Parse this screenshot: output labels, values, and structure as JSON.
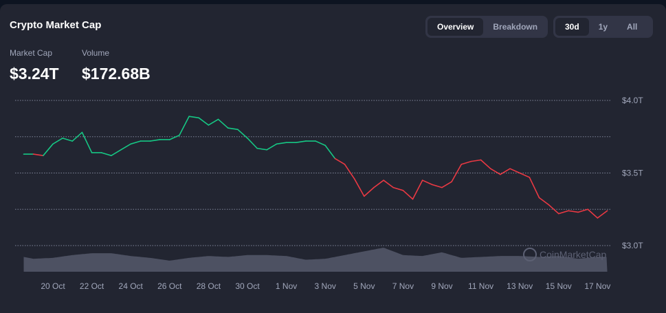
{
  "header": {
    "title": "Crypto Market Cap"
  },
  "view_tabs": [
    {
      "label": "Overview",
      "active": true
    },
    {
      "label": "Breakdown",
      "active": false
    }
  ],
  "range_tabs": [
    {
      "label": "30d",
      "active": true
    },
    {
      "label": "1y",
      "active": false
    },
    {
      "label": "All",
      "active": false
    }
  ],
  "stats": {
    "market_cap_label": "Market Cap",
    "market_cap_value": "$3.24T",
    "volume_label": "Volume",
    "volume_value": "$172.68B"
  },
  "watermark": "CoinMarketCap",
  "colors": {
    "up": "#16c784",
    "down": "#ea3943",
    "background": "#222531",
    "volume": "#5c6073"
  },
  "chart_data": {
    "type": "line",
    "ylim": [
      3.0,
      4.0
    ],
    "y_ticks": [
      {
        "value": 4.0,
        "label": "$4.0T"
      },
      {
        "value": 3.75,
        "label": ""
      },
      {
        "value": 3.5,
        "label": "$3.5T"
      },
      {
        "value": 3.25,
        "label": ""
      },
      {
        "value": 3.0,
        "label": "$3.0T"
      }
    ],
    "x_ticks": [
      "20 Oct",
      "22 Oct",
      "24 Oct",
      "26 Oct",
      "28 Oct",
      "30 Oct",
      "1 Nov",
      "3 Nov",
      "5 Nov",
      "7 Nov",
      "9 Nov",
      "11 Nov",
      "13 Nov",
      "15 Nov",
      "17 Nov"
    ],
    "grid": true,
    "x_start": "18 Oct 12:00",
    "x_step_hours": 12,
    "market_cap_trillions": [
      3.63,
      3.63,
      3.62,
      3.7,
      3.74,
      3.72,
      3.78,
      3.64,
      3.64,
      3.62,
      3.66,
      3.7,
      3.72,
      3.72,
      3.73,
      3.73,
      3.76,
      3.89,
      3.88,
      3.83,
      3.87,
      3.81,
      3.8,
      3.74,
      3.67,
      3.66,
      3.7,
      3.71,
      3.71,
      3.72,
      3.72,
      3.69,
      3.6,
      3.56,
      3.46,
      3.34,
      3.4,
      3.45,
      3.4,
      3.38,
      3.32,
      3.45,
      3.42,
      3.4,
      3.44,
      3.56,
      3.58,
      3.59,
      3.53,
      3.49,
      3.53,
      3.5,
      3.47,
      3.33,
      3.28,
      3.22,
      3.24,
      3.23,
      3.25,
      3.19,
      3.24
    ],
    "volume_relative_daily": [
      0.6,
      0.4,
      0.45,
      0.6,
      0.7,
      0.7,
      0.55,
      0.45,
      0.3,
      0.45,
      0.55,
      0.5,
      0.6,
      0.6,
      0.55,
      0.35,
      0.4,
      0.6,
      0.8,
      1.0,
      0.6,
      0.55,
      0.75,
      0.45,
      0.5,
      0.55,
      0.55,
      0.5,
      0.55,
      0.4,
      0.5
    ]
  }
}
